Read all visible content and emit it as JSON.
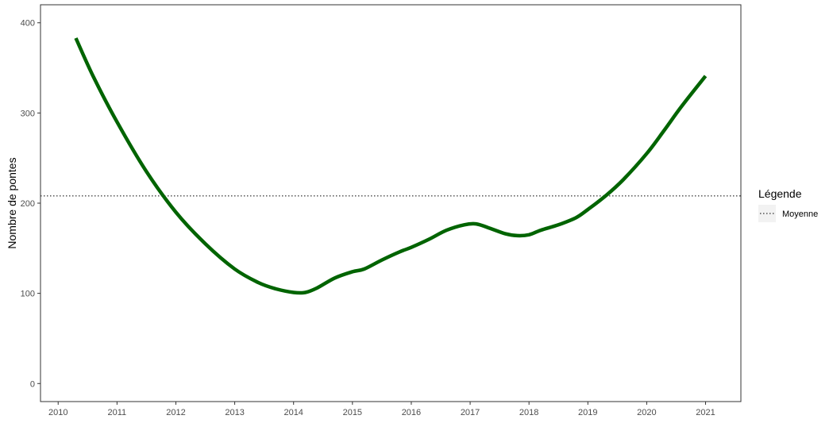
{
  "chart_data": {
    "type": "line",
    "title": "",
    "xlabel": "",
    "ylabel": "Nombre de pontes",
    "xlim": [
      2009.7,
      2021.6
    ],
    "ylim": [
      -20,
      420
    ],
    "x_ticks": [
      2010,
      2011,
      2012,
      2013,
      2014,
      2015,
      2016,
      2017,
      2018,
      2019,
      2020,
      2021
    ],
    "y_ticks": [
      0,
      100,
      200,
      300,
      400
    ],
    "grid": false,
    "series": [
      {
        "color": "#006400",
        "x": [
          2010.3,
          2010.6,
          2011.0,
          2011.5,
          2012.0,
          2012.5,
          2013.0,
          2013.4,
          2013.7,
          2014.0,
          2014.2,
          2014.4,
          2014.7,
          2015.0,
          2015.2,
          2015.5,
          2015.8,
          2016.0,
          2016.3,
          2016.6,
          2016.9,
          2017.1,
          2017.3,
          2017.6,
          2017.8,
          2018.0,
          2018.2,
          2018.5,
          2018.8,
          2019.0,
          2019.3,
          2019.6,
          2020.0,
          2020.3,
          2020.6,
          2021.0
        ],
        "y": [
          383,
          340,
          290,
          235,
          190,
          155,
          127,
          112,
          105,
          101,
          101,
          106,
          117,
          124,
          127,
          137,
          146,
          151,
          160,
          170,
          176,
          177,
          173,
          166,
          164,
          165,
          170,
          176,
          184,
          193,
          208,
          226,
          255,
          281,
          308,
          341
        ]
      }
    ],
    "reference_line": {
      "y": 208,
      "style": "dotted",
      "label": "Moyenne"
    },
    "legend": {
      "title": "Légende",
      "position": "right",
      "entries": [
        {
          "label": "Moyenne",
          "style": "dotted"
        }
      ]
    }
  }
}
